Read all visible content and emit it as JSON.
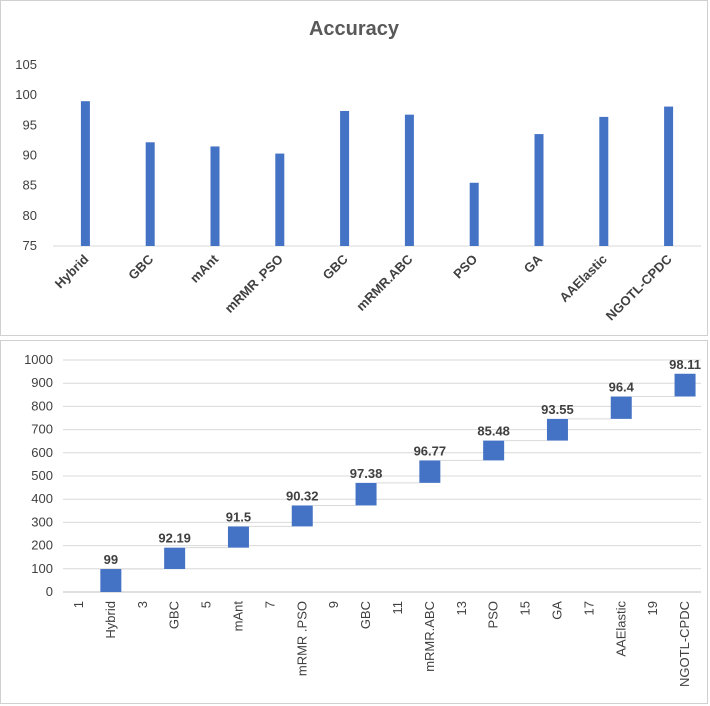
{
  "colors": {
    "bar": "#4472c4",
    "grid": "#d9d9d9",
    "connector": "#d9d9d9",
    "text": "#404040"
  },
  "chart_data": [
    {
      "type": "bar",
      "title": "Accuracy",
      "categories": [
        "Hybrid",
        "GBC",
        "mAnt",
        "mRMR .PSO",
        "GBC",
        "mRMR.ABC",
        "PSO",
        "GA",
        "AAElastic",
        "NGOTL-CPDC"
      ],
      "values": [
        99,
        92.19,
        91.5,
        90.32,
        97.38,
        96.77,
        85.48,
        93.55,
        96.4,
        98.11
      ],
      "ylim": [
        75,
        105
      ],
      "yticks": [
        75,
        80,
        85,
        90,
        95,
        100,
        105
      ],
      "grid": false,
      "xlabel": "",
      "ylabel": ""
    },
    {
      "type": "bar",
      "subtype": "waterfall",
      "title": "",
      "x_tick_labels": [
        "1",
        "Hybrid",
        "3",
        "GBC",
        "5",
        "mAnt",
        "7",
        "mRMR .PSO",
        "9",
        "GBC",
        "11",
        "mRMR.ABC",
        "13",
        "PSO",
        "15",
        "GA",
        "17",
        "AAElastic",
        "19",
        "NGOTL-CPDC"
      ],
      "values": [
        99,
        92.19,
        91.5,
        90.32,
        97.38,
        96.77,
        85.48,
        93.55,
        96.4,
        98.11
      ],
      "data_labels": [
        "99",
        "92.19",
        "91.5",
        "90.32",
        "97.38",
        "96.77",
        "85.48",
        "93.55",
        "96.4",
        "98.11"
      ],
      "ylim": [
        0,
        1000
      ],
      "yticks": [
        0,
        100,
        200,
        300,
        400,
        500,
        600,
        700,
        800,
        900,
        1000
      ],
      "grid": true,
      "xlabel": "",
      "ylabel": ""
    }
  ]
}
